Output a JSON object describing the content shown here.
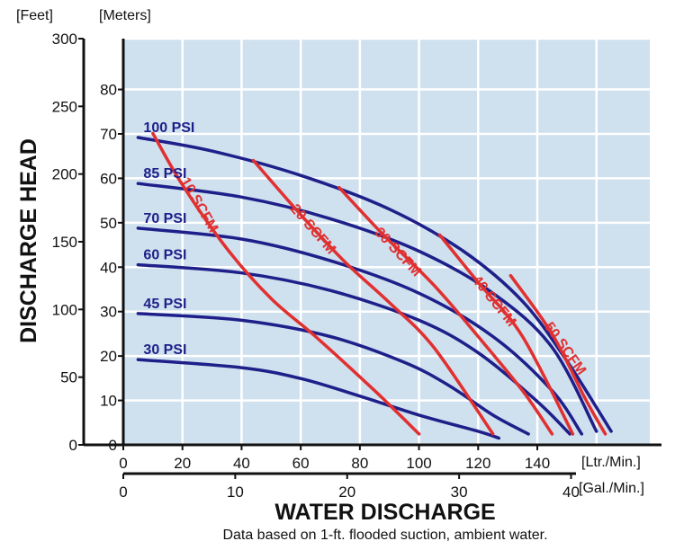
{
  "colors": {
    "plot_bg": "#cfe0ee",
    "grid": "#ffffff",
    "psi": "#1f1f8a",
    "scfm": "#e03030",
    "axis": "#111111"
  },
  "chart_data": {
    "type": "line",
    "ylabel": "DISCHARGE HEAD",
    "xlabel": "WATER DISCHARGE",
    "note": "Data based on 1-ft. flooded suction, ambient water.",
    "y_primary": {
      "unit": "[Feet]",
      "range": [
        0,
        300
      ],
      "ticks": [
        "0",
        "50",
        "100",
        "150",
        "200",
        "250",
        "300"
      ]
    },
    "y_secondary": {
      "unit": "[Meters]",
      "range": [
        0,
        91.44
      ],
      "ticks": [
        "10",
        "20",
        "30",
        "40",
        "50",
        "60",
        "70",
        "80"
      ]
    },
    "x_primary": {
      "unit": "[Ltr./Min.]",
      "range": [
        0,
        180
      ],
      "ticks": [
        "0",
        "20",
        "40",
        "60",
        "80",
        "100",
        "120",
        "140"
      ]
    },
    "x_secondary": {
      "unit": "[Gal./Min.]",
      "range": [
        0,
        47.5
      ],
      "ticks": [
        "0",
        "10",
        "20",
        "30",
        "40"
      ]
    },
    "grid": true,
    "pressure_curves": [
      {
        "name": "100 PSI",
        "points": [
          [
            5,
            227
          ],
          [
            30,
            217
          ],
          [
            60,
            199
          ],
          [
            90,
            174
          ],
          [
            115,
            143
          ],
          [
            135,
            106
          ],
          [
            150,
            62
          ],
          [
            165,
            10
          ]
        ]
      },
      {
        "name": "85 PSI",
        "points": [
          [
            5,
            193
          ],
          [
            40,
            183
          ],
          [
            70,
            167
          ],
          [
            100,
            143
          ],
          [
            125,
            112
          ],
          [
            145,
            72
          ],
          [
            160,
            10
          ]
        ]
      },
      {
        "name": "70 PSI",
        "points": [
          [
            5,
            160
          ],
          [
            40,
            152
          ],
          [
            70,
            136
          ],
          [
            100,
            112
          ],
          [
            125,
            80
          ],
          [
            145,
            40
          ],
          [
            155,
            8
          ]
        ]
      },
      {
        "name": "60 PSI",
        "points": [
          [
            5,
            133
          ],
          [
            40,
            127
          ],
          [
            70,
            114
          ],
          [
            100,
            92
          ],
          [
            120,
            68
          ],
          [
            140,
            32
          ],
          [
            151,
            8
          ]
        ]
      },
      {
        "name": "45 PSI",
        "points": [
          [
            5,
            97
          ],
          [
            40,
            92
          ],
          [
            70,
            80
          ],
          [
            95,
            61
          ],
          [
            110,
            44
          ],
          [
            125,
            22
          ],
          [
            137,
            8
          ]
        ]
      },
      {
        "name": "30 PSI",
        "points": [
          [
            5,
            63
          ],
          [
            40,
            57
          ],
          [
            60,
            49
          ],
          [
            80,
            36
          ],
          [
            100,
            22
          ],
          [
            120,
            10
          ],
          [
            127,
            5
          ]
        ]
      }
    ],
    "air_curves": [
      {
        "name": "10 SCFM",
        "points": [
          [
            10,
            230
          ],
          [
            20,
            192
          ],
          [
            35,
            145
          ],
          [
            50,
            108
          ],
          [
            65,
            80
          ],
          [
            85,
            40
          ],
          [
            100,
            8
          ]
        ]
      },
      {
        "name": "20 SCFM",
        "points": [
          [
            44,
            210
          ],
          [
            60,
            170
          ],
          [
            75,
            135
          ],
          [
            90,
            105
          ],
          [
            105,
            72
          ],
          [
            125,
            8
          ]
        ]
      },
      {
        "name": "30 SCFM",
        "points": [
          [
            73,
            190
          ],
          [
            88,
            155
          ],
          [
            105,
            118
          ],
          [
            120,
            80
          ],
          [
            135,
            40
          ],
          [
            145,
            8
          ]
        ]
      },
      {
        "name": "40 SCFM",
        "points": [
          [
            107,
            155
          ],
          [
            120,
            120
          ],
          [
            135,
            80
          ],
          [
            152,
            8
          ]
        ]
      },
      {
        "name": "50 SCFM",
        "points": [
          [
            131,
            125
          ],
          [
            145,
            82
          ],
          [
            156,
            35
          ],
          [
            163,
            8
          ]
        ]
      }
    ]
  }
}
